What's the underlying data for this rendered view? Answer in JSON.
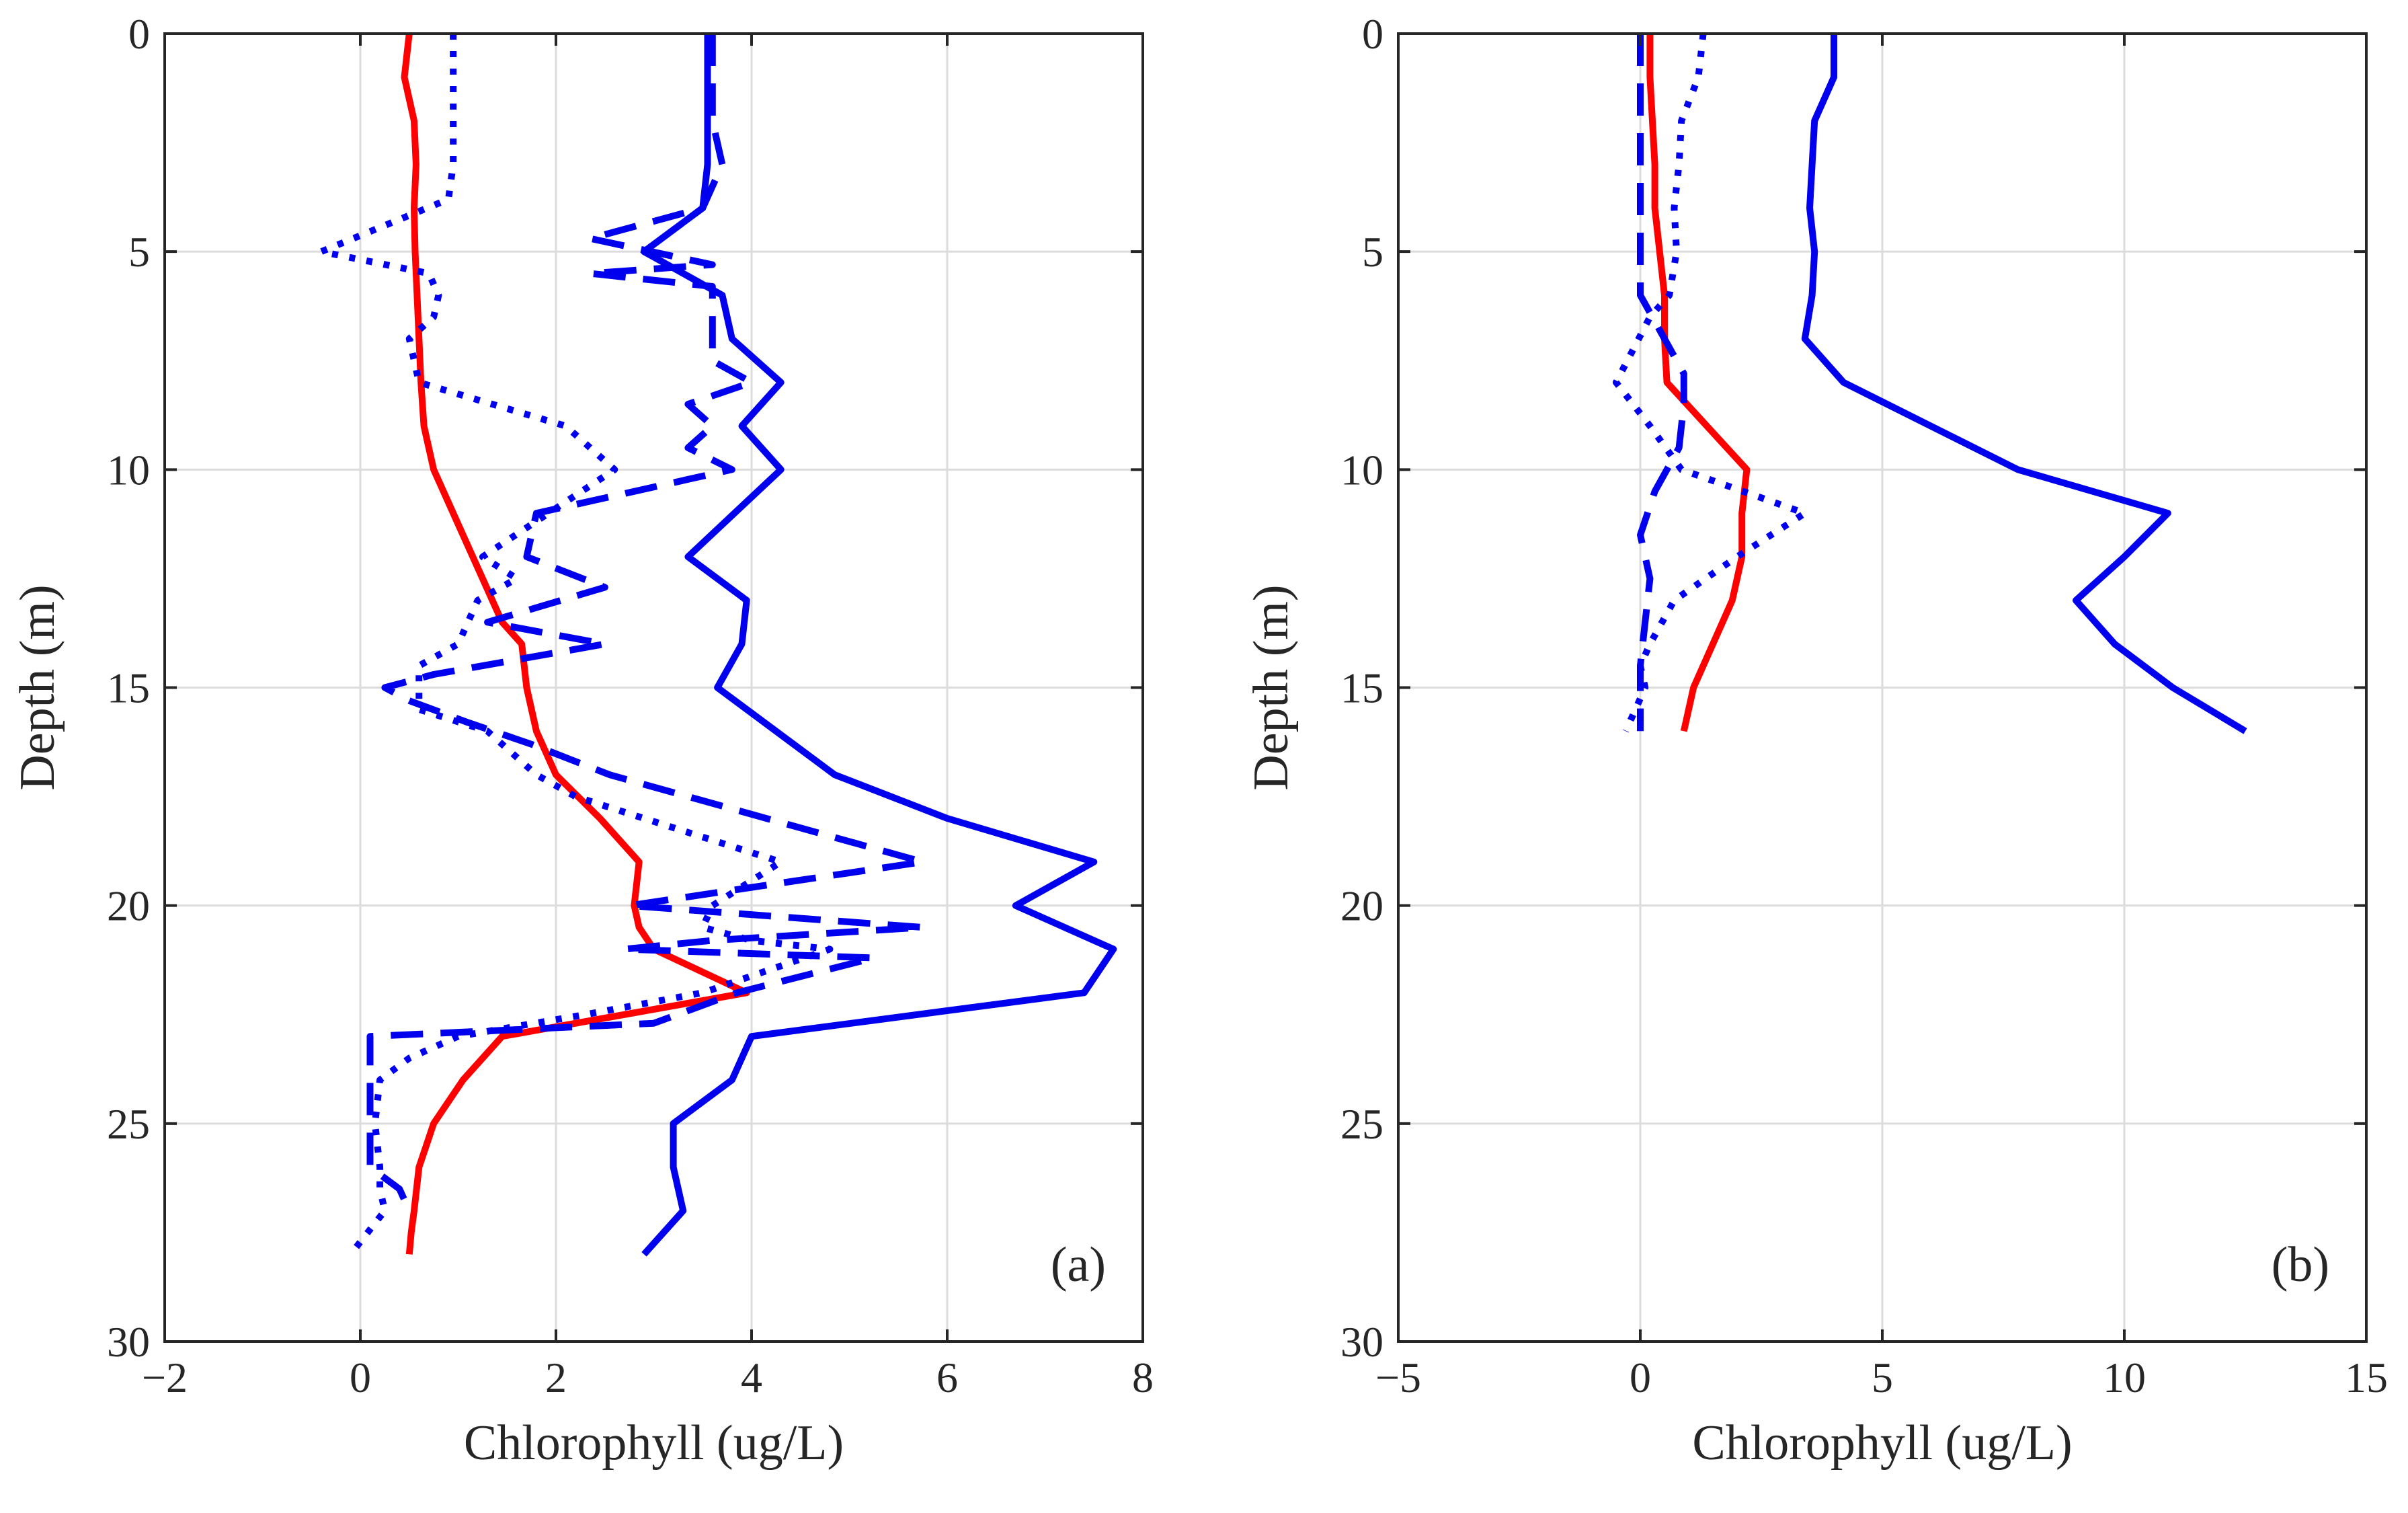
{
  "chart_data": [
    {
      "type": "line",
      "panel_label": "(a)",
      "xlabel": "Chlorophyll (ug/L)",
      "ylabel": "Depth (m)",
      "xlim": [
        -2,
        8
      ],
      "ylim": [
        0,
        30
      ],
      "y_reversed": true,
      "grid": true,
      "xticks": [
        -2,
        0,
        2,
        4,
        6,
        8
      ],
      "yticks": [
        0,
        5,
        10,
        15,
        20,
        25,
        30
      ],
      "xtick_labels": [
        "−2",
        "0",
        "2",
        "4",
        "6",
        "8"
      ],
      "ytick_labels": [
        "0",
        "5",
        "10",
        "15",
        "20",
        "25",
        "30"
      ],
      "series": [
        {
          "name": "red-solid",
          "color": "#ff0000",
          "style": "solid",
          "x": [
            0.5,
            0.45,
            0.55,
            0.57,
            0.55,
            0.56,
            0.58,
            0.6,
            0.62,
            0.65,
            0.75,
            0.95,
            1.15,
            1.25,
            1.35,
            1.45,
            1.65,
            1.7,
            1.8,
            2.0,
            2.45,
            2.85,
            2.8,
            2.85,
            3.0,
            3.95,
            1.45,
            1.05,
            0.75,
            0.6,
            0.55,
            0.52,
            0.5
          ],
          "y": [
            0,
            1,
            2,
            3,
            4,
            5,
            6,
            7,
            8,
            9,
            10,
            11,
            12,
            12.5,
            13,
            13.5,
            14,
            15,
            16,
            17,
            18,
            19,
            20,
            20.5,
            21,
            22,
            23,
            24,
            25,
            26,
            27,
            27.5,
            28
          ]
        },
        {
          "name": "blue-solid",
          "color": "#0000ee",
          "style": "solid",
          "x": [
            3.55,
            3.55,
            3.55,
            3.55,
            3.5,
            2.9,
            3.7,
            3.8,
            4.3,
            3.9,
            4.3,
            3.35,
            3.95,
            3.9,
            3.65,
            4.85,
            6.0,
            7.5,
            6.7,
            7.7,
            7.4,
            4.0,
            3.8,
            3.2,
            3.2,
            3.3,
            2.9
          ],
          "y": [
            0,
            1,
            2,
            3,
            4,
            5,
            6,
            7,
            8,
            9,
            10,
            12,
            13,
            14,
            15,
            17,
            18,
            19,
            20,
            21,
            22,
            23,
            24,
            25,
            26,
            27,
            28
          ]
        },
        {
          "name": "blue-dashed",
          "color": "#0000ee",
          "style": "dashed",
          "x": [
            3.6,
            3.6,
            3.6,
            3.7,
            3.5,
            2.35,
            3.6,
            2.35,
            3.6,
            3.6,
            3.6,
            4.0,
            3.35,
            3.6,
            3.35,
            3.8,
            1.8,
            1.7,
            2.5,
            1.3,
            2.5,
            0.75,
            0.25,
            0.5,
            1.1,
            1.75,
            2.55,
            5.75,
            2.75,
            5.75,
            3.6,
            2.7,
            5.25,
            3.85,
            3.0,
            0.1,
            0.1,
            0.1,
            0.1,
            0.4,
            0.5
          ],
          "y": [
            0,
            1,
            2,
            3,
            4,
            4.7,
            5.3,
            5.5,
            5.8,
            6.5,
            7.5,
            8,
            8.5,
            9,
            9.5,
            10,
            11,
            12,
            12.7,
            13.5,
            14,
            14.7,
            15,
            15.3,
            15.8,
            16.3,
            17,
            19,
            20,
            20.5,
            20.8,
            21,
            21.2,
            22,
            22.7,
            23,
            24,
            25,
            26,
            26.5,
            27
          ]
        },
        {
          "name": "blue-dotted",
          "color": "#0000ee",
          "style": "dotted",
          "x": [
            0.95,
            0.95,
            0.95,
            0.95,
            0.9,
            -0.4,
            0.7,
            0.8,
            0.75,
            0.5,
            0.6,
            2.1,
            2.6,
            1.25,
            1.6,
            1.2,
            1.0,
            0.6,
            0.6,
            0.6,
            1.3,
            1.8,
            2.2,
            2.9,
            4.3,
            3.6,
            3.5,
            4.0,
            4.8,
            3.5,
            2.3,
            1.0,
            0.5,
            0.2,
            0.15,
            0.2,
            0.2,
            0.25,
            -0.1
          ],
          "y": [
            0,
            1,
            2,
            3,
            3.8,
            5,
            5.5,
            6,
            6.5,
            7,
            8,
            9,
            10,
            12,
            12.5,
            13,
            14,
            14.5,
            15,
            15.5,
            16,
            17,
            17.5,
            18,
            19,
            20,
            20.5,
            20.8,
            21,
            22,
            22.5,
            23,
            23.5,
            24,
            25,
            26,
            26.5,
            27,
            28
          ]
        }
      ]
    },
    {
      "type": "line",
      "panel_label": "(b)",
      "xlabel": "Chlorophyll (ug/L)",
      "ylabel": "Depth (m)",
      "xlim": [
        -5,
        15
      ],
      "ylim": [
        0,
        30
      ],
      "y_reversed": true,
      "grid": true,
      "xticks": [
        -5,
        0,
        5,
        10,
        15
      ],
      "yticks": [
        0,
        5,
        10,
        15,
        20,
        25,
        30
      ],
      "xtick_labels": [
        "−5",
        "0",
        "5",
        "10",
        "15"
      ],
      "ytick_labels": [
        "0",
        "5",
        "10",
        "15",
        "20",
        "25",
        "30"
      ],
      "series": [
        {
          "name": "red-solid",
          "color": "#ff0000",
          "style": "solid",
          "x": [
            0.2,
            0.2,
            0.25,
            0.3,
            0.3,
            0.4,
            0.5,
            0.5,
            0.55,
            2.2,
            2.1,
            2.1,
            1.9,
            1.1,
            0.9
          ],
          "y": [
            0,
            1,
            2,
            3,
            4,
            5,
            6,
            7,
            8,
            10,
            11,
            12,
            13,
            15,
            16
          ]
        },
        {
          "name": "blue-solid",
          "color": "#0000ee",
          "style": "solid",
          "x": [
            4.0,
            4.0,
            3.6,
            3.55,
            3.5,
            3.6,
            3.55,
            3.4,
            4.2,
            7.8,
            10.9,
            10.0,
            9.0,
            9.8,
            11.0,
            12.5
          ],
          "y": [
            0,
            1,
            2,
            3,
            4,
            5,
            6,
            7,
            8,
            10,
            11,
            12,
            13,
            14,
            15,
            16
          ]
        },
        {
          "name": "blue-dashed",
          "color": "#0000ee",
          "style": "dashed",
          "x": [
            0.0,
            0.0,
            0.0,
            0.0,
            0.0,
            0.0,
            0.0,
            0.6,
            0.9,
            0.9,
            0.8,
            0.3,
            0.0,
            0.2,
            0.1,
            0.0,
            0.0
          ],
          "y": [
            0,
            1,
            2,
            3,
            4,
            5,
            6,
            7.2,
            7.8,
            8.5,
            9.5,
            10.5,
            11.5,
            12.5,
            13.5,
            14.5,
            16
          ]
        },
        {
          "name": "blue-dotted",
          "color": "#0000ee",
          "style": "dotted",
          "x": [
            1.3,
            1.2,
            0.85,
            0.8,
            0.7,
            0.75,
            0.6,
            0.2,
            -0.5,
            0.2,
            0.85,
            3.4,
            2.0,
            0.7,
            0.2,
            0.0,
            0.1,
            -0.3
          ],
          "y": [
            0,
            1,
            2,
            3,
            4,
            5,
            6,
            6.5,
            8,
            9,
            10,
            11,
            12,
            13,
            14,
            14.5,
            15,
            16
          ]
        }
      ]
    }
  ]
}
